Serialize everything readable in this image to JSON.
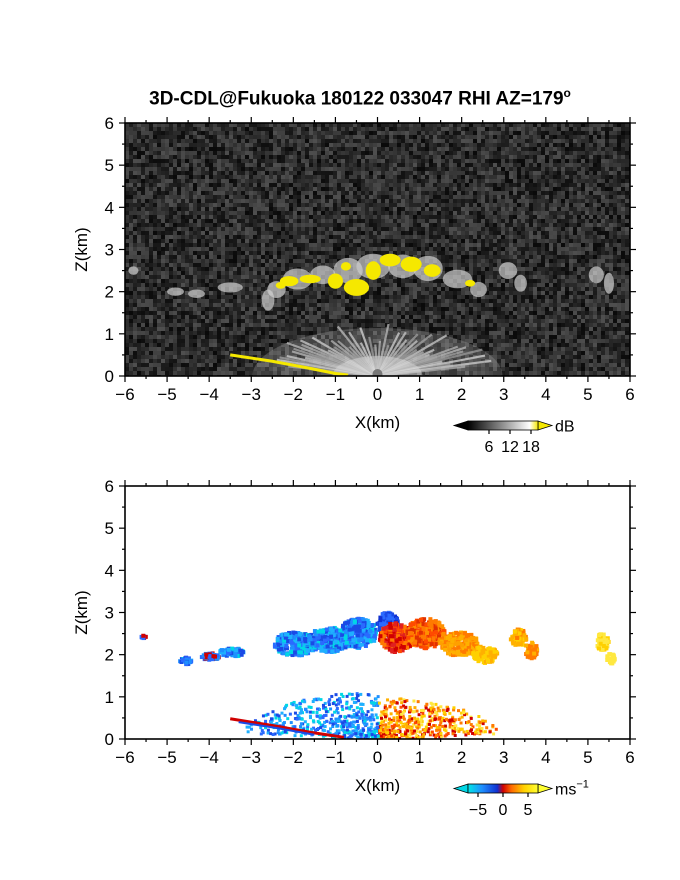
{
  "title": {
    "text": "3D-CDL@Fukuoka 180122 033047 RHI AZ=179",
    "degree_mark": "o"
  },
  "chart_data": [
    {
      "type": "heatmap",
      "name": "backscatter-intensity",
      "x_label": "X(km)",
      "y_label": "Z(km)",
      "xlim": [
        -6,
        6
      ],
      "ylim": [
        0,
        6
      ],
      "x_ticks": [
        "−6",
        "−5",
        "−4",
        "−3",
        "−2",
        "−1",
        "0",
        "1",
        "2",
        "3",
        "4",
        "5",
        "6"
      ],
      "y_ticks": [
        "0",
        "1",
        "2",
        "3",
        "4",
        "5",
        "6"
      ],
      "colorbar": {
        "unit": "dB",
        "ticks": [
          "6",
          "12",
          "18"
        ],
        "tick_values": [
          6,
          12,
          18
        ],
        "range": [
          0,
          20
        ],
        "colors": [
          "#000000",
          "#ffffff",
          "#f5e800"
        ]
      },
      "features": [
        {
          "label": "cloud layer",
          "x_range": [
            -2.5,
            2.6
          ],
          "z_range": [
            1.8,
            3.1
          ],
          "max_db": 20
        },
        {
          "label": "near-ground fan",
          "x_range": [
            -3.5,
            3.0
          ],
          "z_range": [
            0,
            1.3
          ],
          "max_db": 14
        },
        {
          "label": "surface echo",
          "x_range": [
            -3.5,
            -0.7
          ],
          "z_range": [
            0,
            0.5
          ],
          "max_db": 20
        }
      ]
    },
    {
      "type": "heatmap",
      "name": "doppler-velocity",
      "x_label": "X(km)",
      "y_label": "Z(km)",
      "xlim": [
        -6,
        6
      ],
      "ylim": [
        0,
        6
      ],
      "x_ticks": [
        "−6",
        "−5",
        "−4",
        "−3",
        "−2",
        "−1",
        "0",
        "1",
        "2",
        "3",
        "4",
        "5",
        "6"
      ],
      "y_ticks": [
        "0",
        "1",
        "2",
        "3",
        "4",
        "5",
        "6"
      ],
      "colorbar": {
        "unit": "ms",
        "unit_exponent": "−1",
        "ticks": [
          "−5",
          "0",
          "5"
        ],
        "tick_values": [
          -5,
          0,
          5
        ],
        "range": [
          -7,
          7
        ],
        "colors": [
          "#00e5e5",
          "#1f6fff",
          "#1030d0",
          "#d00000",
          "#ff6a00",
          "#ffd000",
          "#ffff30"
        ]
      },
      "features": [
        {
          "label": "cloud layer west",
          "x_range": [
            -2.6,
            0.0
          ],
          "z_range": [
            1.9,
            3.1
          ],
          "velocity": -4
        },
        {
          "label": "cloud layer east",
          "x_range": [
            0.0,
            2.8
          ],
          "z_range": [
            1.9,
            3.0
          ],
          "velocity": 3
        },
        {
          "label": "low-level fan west",
          "x_range": [
            -3.5,
            0.0
          ],
          "z_range": [
            0,
            1.2
          ],
          "velocity": -5
        },
        {
          "label": "low-level fan east",
          "x_range": [
            0.0,
            2.8
          ],
          "z_range": [
            0,
            1.2
          ],
          "velocity": 5
        }
      ]
    }
  ]
}
